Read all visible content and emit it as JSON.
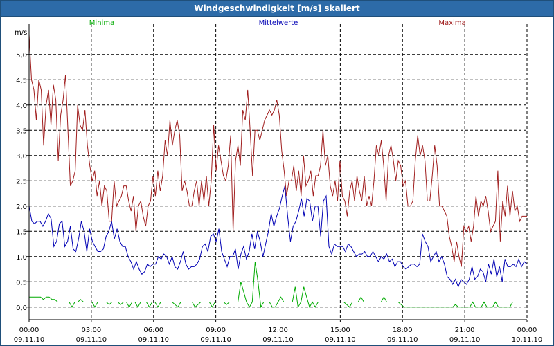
{
  "window": {
    "title": "Windgeschwindigkeit [m/s] skaliert"
  },
  "chart_data": {
    "type": "line",
    "title": "Windgeschwindigkeit [m/s] skaliert",
    "ylabel": "m/s",
    "xlabel": "",
    "ylim": [
      -0.25,
      5.6
    ],
    "xlim": [
      0,
      24
    ],
    "grid": true,
    "legend_position": "top",
    "yticks": [
      "0,0",
      "0,5",
      "1,0",
      "1,5",
      "2,0",
      "2,5",
      "3,0",
      "3,5",
      "4,0",
      "4,5",
      "5,0"
    ],
    "ytick_values": [
      0,
      0.5,
      1,
      1.5,
      2,
      2.5,
      3,
      3.5,
      4,
      4.5,
      5
    ],
    "xticks": [
      {
        "time": "00:00",
        "date": "09.11.10",
        "x": 0
      },
      {
        "time": "03:00",
        "date": "09.11.10",
        "x": 3
      },
      {
        "time": "06:00",
        "date": "09.11.10",
        "x": 6
      },
      {
        "time": "09:00",
        "date": "09.11.10",
        "x": 9
      },
      {
        "time": "12:00",
        "date": "09.11.10",
        "x": 12
      },
      {
        "time": "15:00",
        "date": "09.11.10",
        "x": 15
      },
      {
        "time": "18:00",
        "date": "09.11.10",
        "x": 18
      },
      {
        "time": "21:00",
        "date": "09.11.10",
        "x": 21
      },
      {
        "time": "00:00",
        "date": "10.11.10",
        "x": 24
      }
    ],
    "series": [
      {
        "name": "Minima",
        "color": "#00aa00",
        "values": [
          0.2,
          0.2,
          0.2,
          0.2,
          0.2,
          0.15,
          0.2,
          0.2,
          0.15,
          0.15,
          0.1,
          0.1,
          0.1,
          0.1,
          0.1,
          0.0,
          0.1,
          0.1,
          0.15,
          0.1,
          0.1,
          0.1,
          0.1,
          0.0,
          0.1,
          0.1,
          0.1,
          0.1,
          0.05,
          0.1,
          0.1,
          0.1,
          0.05,
          0.1,
          0.1,
          0.0,
          0.1,
          0.1,
          0.0,
          0.1,
          0.1,
          0.1,
          0.0,
          0.1,
          0.1,
          0.0,
          0.1,
          0.1,
          0.1,
          0.1,
          0.1,
          0.05,
          0.0,
          0.1,
          0.1,
          0.1,
          0.1,
          0.1,
          0.0,
          0.05,
          0.1,
          0.1,
          0.1,
          0.1,
          0.0,
          0.1,
          0.1,
          0.1,
          0.1,
          0.05,
          0.1,
          0.1,
          0.1,
          0.1,
          0.5,
          0.3,
          0.1,
          0.0,
          0.1,
          0.9,
          0.5,
          0.0,
          0.1,
          0.1,
          0.1,
          0.0,
          0.0,
          0.1,
          0.2,
          0.1,
          0.1,
          0.1,
          0.1,
          0.4,
          0.0,
          0.1,
          0.4,
          0.2,
          0.0,
          0.1,
          0.0,
          0.1,
          0.1,
          0.1,
          0.1,
          0.1,
          0.1,
          0.1,
          0.1,
          0.1,
          0.1,
          0.05,
          0.0,
          0.1,
          0.1,
          0.1,
          0.2,
          0.1,
          0.1,
          0.1,
          0.1,
          0.1,
          0.1,
          0.1,
          0.2,
          0.1,
          0.1,
          0.1,
          0.1,
          0.1,
          0.05,
          0.0,
          0.0,
          0.0,
          0.0,
          0.0,
          0.0,
          0.0,
          0.0,
          0.0,
          0.0,
          0.0,
          0.0,
          0.0,
          0.0,
          0.0,
          0.0,
          0.0,
          0.0,
          0.05,
          0.0,
          0.0,
          0.0,
          0.0,
          0.0,
          0.1,
          0.0,
          0.0,
          0.0,
          0.1,
          0.0,
          0.0,
          0.0,
          0.1,
          0.0,
          0.0,
          0.0,
          0.0,
          0.0,
          0.1,
          0.1,
          0.1,
          0.1,
          0.1,
          0.1
        ]
      },
      {
        "name": "Mittelwerte",
        "color": "#0000b4",
        "values": [
          2.0,
          1.7,
          1.65,
          1.7,
          1.7,
          1.6,
          1.7,
          1.85,
          1.75,
          1.2,
          1.3,
          1.65,
          1.7,
          1.2,
          1.3,
          1.6,
          1.15,
          1.1,
          1.35,
          1.7,
          1.5,
          1.1,
          1.55,
          1.3,
          1.2,
          1.1,
          1.1,
          1.15,
          1.4,
          1.5,
          1.7,
          1.35,
          1.55,
          1.3,
          1.2,
          1.2,
          1.0,
          0.9,
          0.75,
          0.9,
          0.75,
          0.65,
          0.7,
          0.85,
          0.8,
          0.85,
          0.85,
          1.0,
          0.95,
          1.05,
          1.0,
          0.85,
          1.0,
          0.8,
          0.75,
          0.9,
          1.1,
          0.85,
          0.75,
          0.8,
          0.8,
          0.85,
          0.95,
          1.2,
          1.25,
          1.1,
          1.4,
          1.45,
          1.3,
          1.55,
          1.1,
          0.95,
          0.8,
          1.0,
          1.0,
          1.15,
          0.75,
          1.05,
          1.2,
          0.95,
          1.1,
          1.45,
          1.15,
          1.5,
          1.3,
          1.0,
          1.25,
          1.5,
          1.85,
          1.6,
          1.8,
          1.95,
          2.2,
          2.4,
          1.8,
          1.3,
          1.6,
          1.7,
          1.9,
          2.15,
          1.8,
          2.15,
          2.1,
          1.7,
          2.0,
          2.0,
          1.4,
          2.1,
          2.2,
          1.2,
          1.05,
          1.25,
          1.2,
          1.2,
          1.2,
          1.1,
          1.25,
          1.2,
          1.1,
          1.0,
          1.05,
          1.05,
          1.1,
          1.0,
          1.0,
          1.1,
          1.0,
          0.9,
          1.0,
          0.95,
          1.05,
          0.9,
          0.95,
          0.8,
          0.9,
          0.9,
          0.8,
          0.75,
          0.8,
          0.85,
          0.85,
          0.8,
          0.85,
          1.45,
          1.3,
          1.2,
          0.9,
          1.0,
          1.1,
          0.9,
          1.0,
          0.85,
          0.6,
          0.55,
          0.45,
          0.55,
          0.4,
          0.55,
          0.5,
          0.45,
          0.55,
          0.8,
          0.55,
          0.6,
          0.75,
          0.7,
          0.5,
          0.85,
          0.65,
          0.95,
          0.6,
          0.8,
          0.5,
          0.95,
          0.8,
          0.8,
          0.85,
          0.8,
          0.95,
          0.8,
          0.9,
          0.85
        ]
      },
      {
        "name": "Maxima",
        "color": "#a01e1e",
        "values": [
          5.4,
          4.5,
          4.3,
          3.7,
          4.5,
          4.3,
          3.2,
          4.0,
          4.3,
          3.6,
          4.4,
          4.1,
          2.9,
          3.8,
          4.1,
          4.6,
          3.5,
          2.4,
          2.5,
          2.7,
          4.0,
          3.6,
          3.5,
          3.9,
          3.2,
          2.8,
          2.5,
          2.7,
          2.2,
          2.5,
          2.0,
          2.4,
          2.3,
          1.7,
          1.7,
          2.5,
          2.0,
          2.1,
          2.2,
          2.4,
          2.4,
          2.1,
          1.9,
          2.2,
          1.5,
          2.0,
          2.1,
          1.8,
          1.6,
          2.0,
          2.1,
          2.6,
          2.2,
          2.7,
          2.3,
          2.6,
          3.3,
          3.0,
          3.7,
          3.2,
          3.5,
          3.7,
          3.4,
          2.3,
          2.5,
          2.3,
          2.0,
          2.0,
          2.3,
          2.5,
          2.0,
          2.5,
          2.1,
          2.6,
          2.0,
          2.5,
          3.6,
          2.7,
          3.2,
          2.9,
          2.6,
          2.5,
          2.8,
          3.4,
          1.5,
          2.9,
          3.2,
          2.8,
          3.9,
          3.7,
          4.3,
          3.5,
          2.6,
          3.5,
          3.5,
          3.3,
          3.5,
          3.7,
          3.8,
          3.9,
          3.8,
          3.9,
          4.1,
          3.8,
          3.1,
          2.7,
          2.2,
          2.5,
          2.5,
          2.8,
          2.3,
          2.7,
          2.2,
          3.0,
          2.4,
          2.5,
          2.7,
          2.2,
          2.6,
          2.6,
          2.8,
          3.5,
          2.8,
          3.0,
          2.4,
          2.2,
          2.5,
          2.1,
          2.9,
          2.2,
          2.1,
          1.8,
          2.3,
          2.5,
          2.1,
          2.6,
          2.3,
          2.1,
          2.6,
          2.0,
          2.2,
          2.0,
          2.5,
          3.2,
          3.0,
          3.3,
          2.8,
          2.1,
          3.0,
          3.2,
          2.9,
          2.5,
          2.9,
          2.8,
          2.4,
          2.5,
          2.0,
          2.0,
          2.1,
          2.9,
          3.4,
          3.0,
          3.2,
          2.9,
          2.1,
          2.1,
          2.6,
          3.2,
          2.8,
          2.0,
          2.0,
          1.9,
          1.8,
          1.4,
          1.2,
          0.9,
          1.3,
          1.0,
          0.8,
          1.6,
          1.5,
          1.6,
          1.3,
          1.6,
          2.2,
          1.8,
          2.1,
          2.0,
          2.2,
          1.9,
          1.5,
          1.6,
          1.7,
          2.7,
          1.3,
          2.1,
          1.8,
          2.4,
          1.8,
          2.3,
          1.9,
          2.0,
          1.7,
          1.8,
          1.8,
          1.8
        ]
      }
    ]
  }
}
